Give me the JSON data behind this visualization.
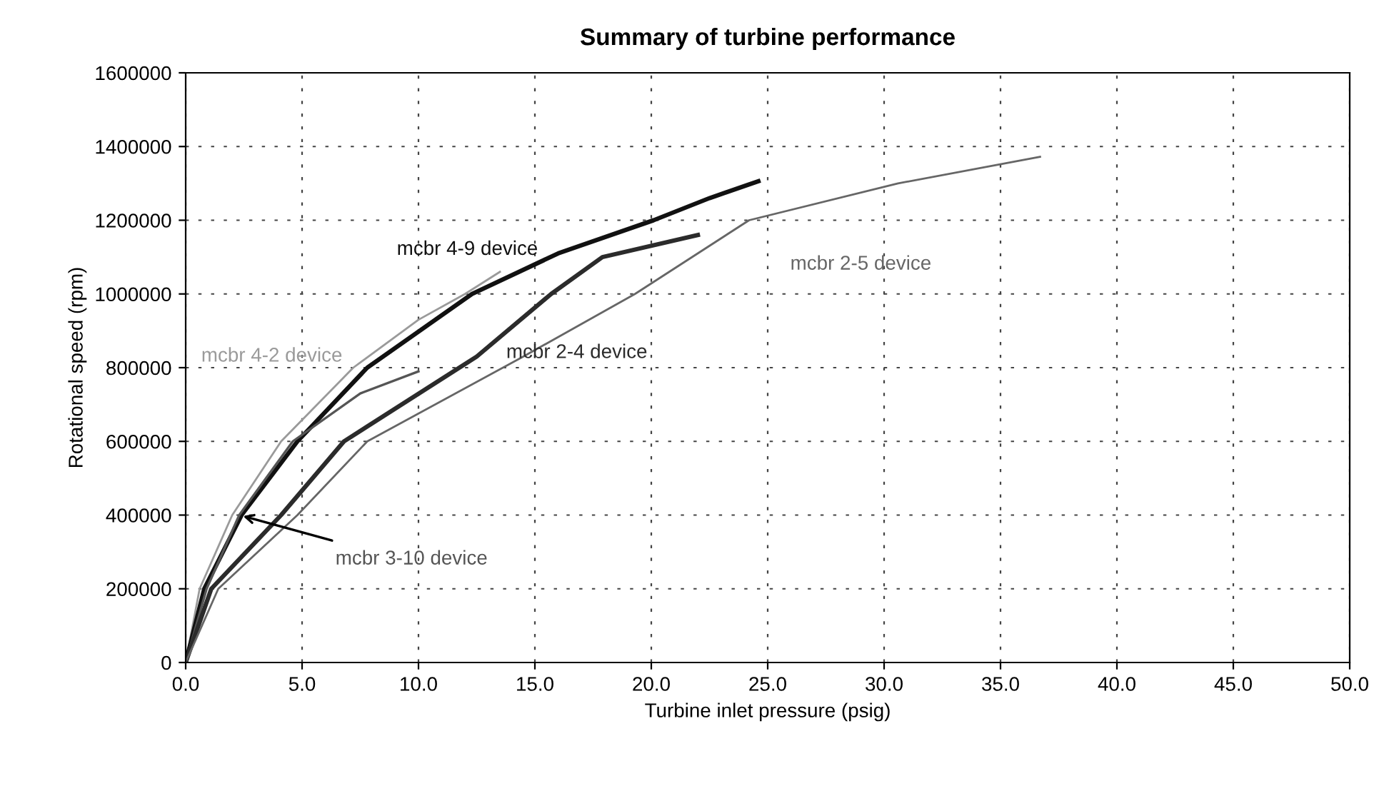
{
  "chart_data": {
    "type": "line",
    "title": "Summary of turbine performance",
    "xlabel": "Turbine inlet pressure (psig)",
    "ylabel": "Rotational speed (rpm)",
    "xlim": [
      0,
      50
    ],
    "xticks": [
      {
        "value": 0,
        "label": "0.0"
      },
      {
        "value": 5,
        "label": "5.0"
      },
      {
        "value": 10,
        "label": "10.0"
      },
      {
        "value": 15,
        "label": "15.0"
      },
      {
        "value": 20,
        "label": "20.0"
      },
      {
        "value": 25,
        "label": "25.0"
      },
      {
        "value": 30,
        "label": "30.0"
      },
      {
        "value": 35,
        "label": "35.0"
      },
      {
        "value": 40,
        "label": "40.0"
      },
      {
        "value": 45,
        "label": "45.0"
      },
      {
        "value": 50,
        "label": "50.0"
      }
    ],
    "ylim": [
      0,
      1600000
    ],
    "yticks": [
      0,
      200000,
      400000,
      600000,
      800000,
      1000000,
      1200000,
      1400000,
      1600000
    ],
    "grid": true,
    "line_style": "solid",
    "series": [
      {
        "name": "mcbr 4-2 device",
        "color": "#9a9a9a",
        "x": [
          0,
          0.6,
          2.0,
          4.1,
          7.2,
          10.0,
          12.0,
          13.5
        ],
        "values": [
          0,
          200000,
          400000,
          600000,
          800000,
          930000,
          1000000,
          1060000
        ]
      },
      {
        "name": "mcbr 4-9 device",
        "color": "#111111",
        "x": [
          0,
          0.8,
          2.4,
          4.8,
          7.8,
          12.3,
          16.0,
          20.1,
          22.5,
          24.6
        ],
        "values": [
          0,
          200000,
          400000,
          600000,
          800000,
          1000000,
          1110000,
          1200000,
          1260000,
          1306000
        ]
      },
      {
        "name": "mcbr 3-10 device",
        "color": "#555555",
        "x": [
          0,
          0.9,
          2.3,
          4.6,
          7.5,
          10.0
        ],
        "values": [
          0,
          200000,
          400000,
          600000,
          730000,
          790000
        ]
      },
      {
        "name": "mcbr 2-4 device",
        "color": "#2b2b2b",
        "x": [
          0,
          1.1,
          4.1,
          6.8,
          12.5,
          15.7,
          17.9,
          22.0
        ],
        "values": [
          0,
          200000,
          400000,
          600000,
          830000,
          1000000,
          1100000,
          1160000
        ]
      },
      {
        "name": "mcbr 2-5 device",
        "color": "#666666",
        "x": [
          0,
          1.4,
          4.8,
          7.8,
          14.5,
          19.3,
          24.2,
          30.6,
          36.7
        ],
        "values": [
          0,
          200000,
          400000,
          600000,
          830000,
          1000000,
          1200000,
          1300000,
          1372000
        ]
      }
    ]
  }
}
